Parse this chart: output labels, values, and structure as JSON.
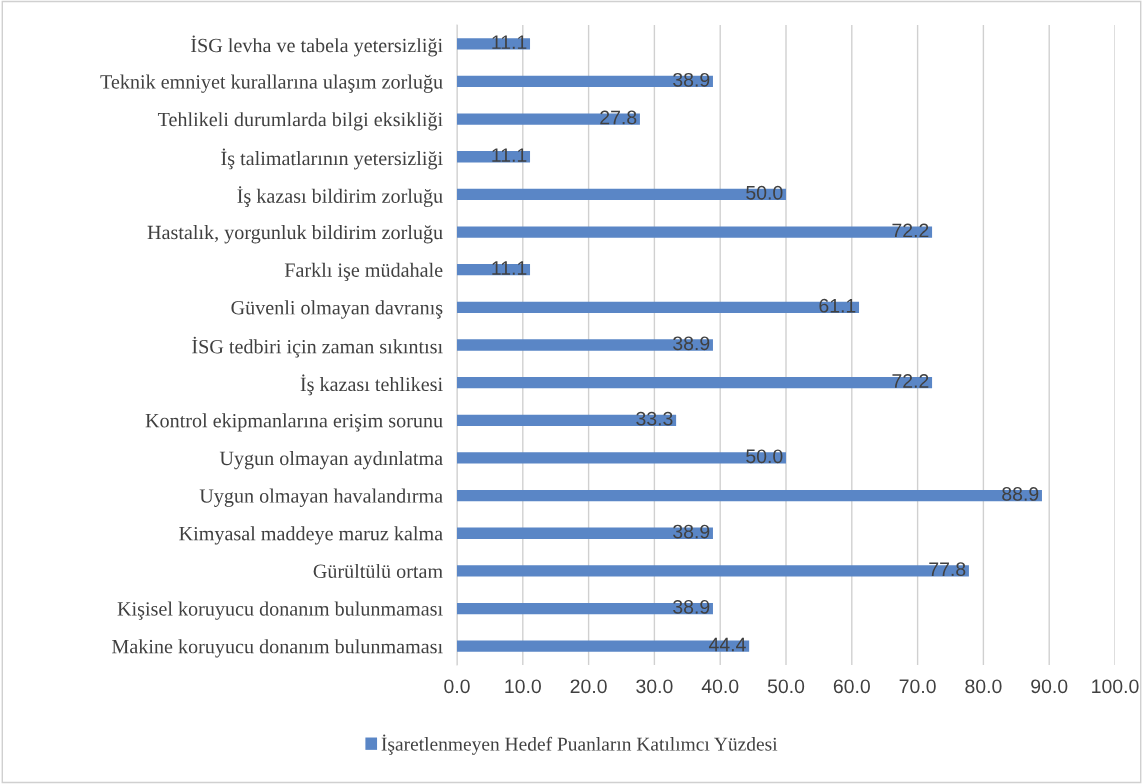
{
  "chart_data": {
    "type": "bar",
    "orientation": "horizontal",
    "categories": [
      "İSG levha ve tabela yetersizliği",
      "Teknik emniyet kurallarına ulaşım zorluğu",
      "Tehlikeli durumlarda bilgi eksikliği",
      "İş talimatlarının yetersizliği",
      "İş kazası bildirim zorluğu",
      "Hastalık, yorgunluk bildirim zorluğu",
      "Farklı işe müdahale",
      "Güvenli olmayan davranış",
      "İSG tedbiri için zaman sıkıntısı",
      "İş kazası tehlikesi",
      "Kontrol ekipmanlarına erişim sorunu",
      "Uygun olmayan aydınlatma",
      "Uygun olmayan havalandırma",
      "Kimyasal maddeye maruz kalma",
      "Gürültülü ortam",
      "Kişisel koruyucu donanım bulunmaması",
      "Makine koruyucu donanım bulunmaması"
    ],
    "series": [
      {
        "name": "İşaretlenmeyen Hedef Puanların Katılımcı Yüzdesi",
        "color": "#5a86c6",
        "values": [
          11.1,
          38.9,
          27.8,
          11.1,
          50.0,
          72.2,
          11.1,
          61.1,
          38.9,
          72.2,
          33.3,
          50.0,
          88.9,
          38.9,
          77.8,
          38.9,
          44.4
        ],
        "value_labels": [
          "11.1",
          "38.9",
          "27.8",
          "11.1",
          "50.0",
          "72.2",
          "11.1",
          "61.1",
          "38.9",
          "72.2",
          "33.3",
          "50.0",
          "88.9",
          "38.9",
          "77.8",
          "38.9",
          "44.4"
        ]
      }
    ],
    "xlim": [
      0,
      100
    ],
    "xticks": [
      {
        "value": 0,
        "label": "0.0"
      },
      {
        "value": 10,
        "label": "10.0"
      },
      {
        "value": 20,
        "label": "20.0"
      },
      {
        "value": 30,
        "label": "30.0"
      },
      {
        "value": 40,
        "label": "40.0"
      },
      {
        "value": 50,
        "label": "50.0"
      },
      {
        "value": 60,
        "label": "60.0"
      },
      {
        "value": 70,
        "label": "70.0"
      },
      {
        "value": 80,
        "label": "80.0"
      },
      {
        "value": 90,
        "label": "90.0"
      },
      {
        "value": 100,
        "label": "100.0"
      }
    ],
    "grid": "x",
    "legend": "bottom"
  }
}
